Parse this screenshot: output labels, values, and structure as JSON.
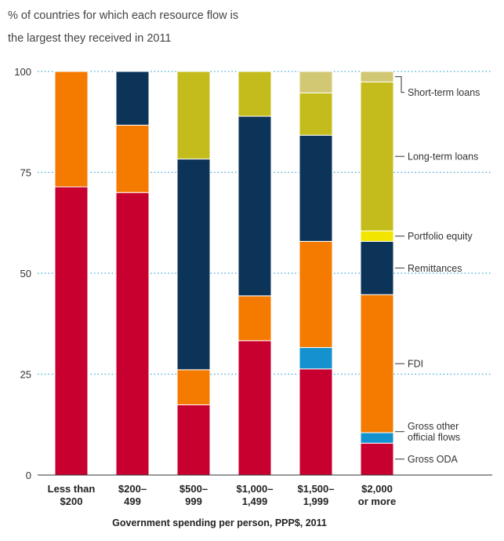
{
  "chart_data": {
    "type": "bar",
    "stacked": true,
    "title_lines": [
      "% of countries for which each resource flow is",
      "the largest they received in 2011"
    ],
    "xlabel": "Government spending per person, PPP$, 2011",
    "ylabel": "",
    "ylim": [
      0,
      100
    ],
    "yticks": [
      "0",
      "25",
      "50",
      "75",
      "100"
    ],
    "ytick_values": [
      0,
      25,
      50,
      75,
      100
    ],
    "grid": "dotted horizontal",
    "legend_placement": "right, labels beside last bar",
    "categories": [
      [
        "Less than",
        "$200"
      ],
      [
        "$200–",
        "499"
      ],
      [
        "$500–",
        "999"
      ],
      [
        "$1,000–",
        "1,499"
      ],
      [
        "$1,500–",
        "1,999"
      ],
      [
        "$2,000",
        "or more"
      ]
    ],
    "series": [
      {
        "name": "Gross ODA",
        "color": "#c8002f",
        "values": [
          71.4,
          70.0,
          17.4,
          33.3,
          26.3,
          7.9
        ]
      },
      {
        "name": "Gross other official flows",
        "color": "#1492cf",
        "values": [
          0,
          0,
          0,
          0,
          5.3,
          2.6
        ]
      },
      {
        "name": "FDI",
        "color": "#f47a00",
        "values": [
          28.6,
          16.7,
          8.7,
          11.1,
          26.3,
          34.2
        ]
      },
      {
        "name": "Remittances",
        "color": "#0c3358",
        "values": [
          0,
          13.3,
          52.2,
          44.5,
          26.3,
          13.2
        ]
      },
      {
        "name": "Portfolio equity",
        "color": "#f2e600",
        "values": [
          0,
          0,
          0,
          0,
          0,
          2.6
        ]
      },
      {
        "name": "Long-term loans",
        "color": "#c4bc1c",
        "values": [
          0,
          0,
          21.7,
          11.1,
          10.5,
          36.9
        ]
      },
      {
        "name": "Short-term loans",
        "color": "#d2c873",
        "values": [
          0,
          0,
          0,
          0,
          5.3,
          2.6
        ]
      }
    ],
    "legend_lines": {
      "Short-term loans": [
        "Short-term loans"
      ],
      "Long-term loans": [
        "Long-term loans"
      ],
      "Portfolio equity": [
        "Portfolio equity"
      ],
      "Remittances": [
        "Remittances"
      ],
      "FDI": [
        "FDI"
      ],
      "Gross other official flows": [
        "Gross other",
        "official flows"
      ],
      "Gross ODA": [
        "Gross ODA"
      ]
    }
  }
}
